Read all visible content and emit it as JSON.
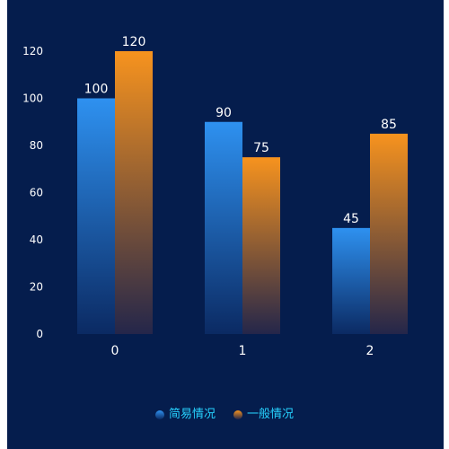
{
  "chart_data": {
    "type": "bar",
    "categories": [
      "0",
      "1",
      "2"
    ],
    "series": [
      {
        "name": "简易情况",
        "values": [
          100,
          90,
          45
        ],
        "color_top": "#2e91f0",
        "color_bottom": "#0b2a63"
      },
      {
        "name": "一般情况",
        "values": [
          120,
          75,
          85
        ],
        "color_top": "#f7931e",
        "color_bottom": "#24264a"
      }
    ],
    "y_ticks": [
      0,
      20,
      40,
      60,
      80,
      100,
      120
    ],
    "ylim": [
      0,
      130
    ],
    "grid": false,
    "legend_position": "bottom-center",
    "title": "",
    "xlabel": "",
    "ylabel": ""
  },
  "colors": {
    "background": "#051d4d",
    "legend_text": "#26d2ff",
    "label_text": "#ffffff"
  }
}
